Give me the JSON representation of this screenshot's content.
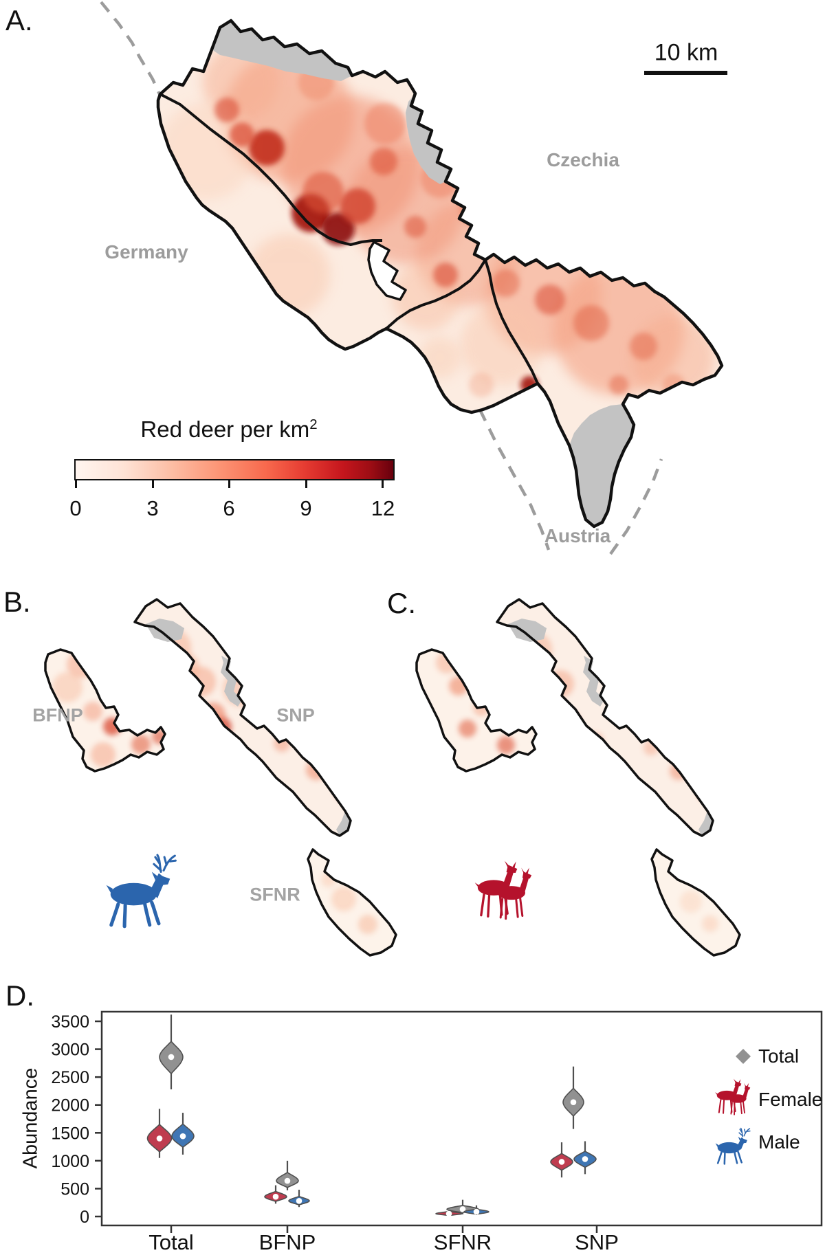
{
  "figure": {
    "panel_a": {
      "label": "A.",
      "country_labels": {
        "germany": "Germany",
        "czechia": "Czechia",
        "austria": "Austria"
      },
      "scale_bar": {
        "label": "10 km"
      },
      "legend": {
        "title": "Red deer per km",
        "title_superscript": "2",
        "tick_labels": [
          "0",
          "3",
          "6",
          "9",
          "12"
        ],
        "min": 0,
        "max": 12
      }
    },
    "panel_b": {
      "label": "B.",
      "region_labels": {
        "bfnp": "BFNP",
        "snp": "SNP",
        "sfnr": "SFNR"
      },
      "icon": "male-red-deer-stag"
    },
    "panel_c": {
      "label": "C.",
      "icon": "female-red-deer-pair"
    },
    "panel_d": {
      "label": "D."
    }
  },
  "colors": {
    "heat_low": "#fff5f0",
    "heat_high": "#67000d",
    "no_data_gray": "#c3c3c3",
    "map_outline": "#111111",
    "country_label_gray": "#9c9c9c",
    "male_blue": "#2b65ad",
    "female_red": "#b5122c",
    "violin_total": "#919191",
    "violin_female": "#bf3c4f",
    "violin_male": "#3f76b4"
  },
  "chart_data": {
    "type": "violin",
    "title": "",
    "xlabel": "",
    "ylabel": "Abundance",
    "ylim": [
      0,
      3500
    ],
    "yticks": [
      0,
      500,
      1000,
      1500,
      2000,
      2500,
      3000,
      3500
    ],
    "categories": [
      "Total",
      "BFNP",
      "SFNR",
      "SNP"
    ],
    "legend": [
      "Total",
      "Female",
      "Male"
    ],
    "legend_position": "right",
    "series": [
      {
        "name": "Total",
        "color": "#919191",
        "means": [
          2860,
          640,
          130,
          2050
        ],
        "body_ranges": [
          [
            2560,
            3140
          ],
          [
            520,
            790
          ],
          [
            70,
            200
          ],
          [
            1800,
            2300
          ]
        ],
        "tail_ranges": [
          [
            2280,
            3620
          ],
          [
            470,
            1000
          ],
          [
            40,
            300
          ],
          [
            1570,
            2690
          ]
        ]
      },
      {
        "name": "Female",
        "color": "#bf3c4f",
        "means": [
          1400,
          355,
          50,
          980
        ],
        "body_ranges": [
          [
            1160,
            1650
          ],
          [
            270,
            450
          ],
          [
            20,
            90
          ],
          [
            830,
            1130
          ]
        ],
        "tail_ranges": [
          [
            1050,
            1930
          ],
          [
            230,
            560
          ],
          [
            10,
            150
          ],
          [
            700,
            1330
          ]
        ]
      },
      {
        "name": "Male",
        "color": "#3f76b4",
        "means": [
          1440,
          280,
          85,
          1030
        ],
        "body_ranges": [
          [
            1240,
            1660
          ],
          [
            210,
            360
          ],
          [
            40,
            130
          ],
          [
            880,
            1170
          ]
        ],
        "tail_ranges": [
          [
            1110,
            1860
          ],
          [
            170,
            480
          ],
          [
            25,
            200
          ],
          [
            760,
            1350
          ]
        ]
      }
    ]
  }
}
